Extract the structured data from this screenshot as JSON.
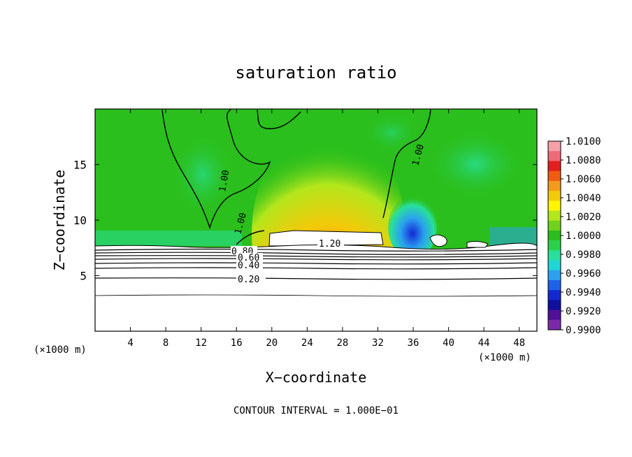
{
  "chart_data": {
    "type": "heatmap",
    "title": "saturation ratio",
    "xlabel": "X−coordinate",
    "ylabel": "Z−coordinate",
    "x_unit_left": "(×1000 m)",
    "x_unit_right": "(×1000 m)",
    "xlim": [
      0,
      50
    ],
    "ylim": [
      0,
      20
    ],
    "x_ticks": [
      4,
      8,
      12,
      16,
      20,
      24,
      28,
      32,
      36,
      40,
      44,
      48
    ],
    "y_ticks": [
      5,
      10,
      15
    ],
    "x_tick_labels": [
      "4",
      "8",
      "12",
      "16",
      "20",
      "24",
      "28",
      "32",
      "36",
      "40",
      "44",
      "48"
    ],
    "y_tick_labels": [
      "5",
      "10",
      "15"
    ],
    "footer": "CONTOUR INTERVAL = 1.000E−01",
    "colorbar": {
      "range": [
        0.99,
        1.01
      ],
      "labels": [
        "1.0100",
        "1.0080",
        "1.0060",
        "1.0040",
        "1.0020",
        "1.0000",
        "0.9980",
        "0.9960",
        "0.9940",
        "0.9920",
        "0.9900"
      ],
      "colors": [
        "#f6a0a8",
        "#ef6a78",
        "#e41e1e",
        "#f25c12",
        "#f59a1c",
        "#f4c90a",
        "#fff600",
        "#b4e61c",
        "#70d21c",
        "#2abf1c",
        "#2ad24c",
        "#28e09c",
        "#1ed6d6",
        "#2ba0f0",
        "#1e62e8",
        "#1428d2",
        "#1010a0",
        "#50109a",
        "#7a2aa8"
      ]
    },
    "contours": [
      {
        "level": 0.2,
        "label": "0.20",
        "z_km": 4.8
      },
      {
        "level": 0.4,
        "label": "0.40",
        "z_km": 5.8
      },
      {
        "level": 0.6,
        "label": "0.60",
        "z_km": 6.6
      },
      {
        "level": 0.8,
        "label": "0.80",
        "z_km": 7.1
      },
      {
        "level": 1.0,
        "label": "1.00",
        "z_km": 10.2
      },
      {
        "level": 1.2,
        "label": "1.20",
        "z_km": 7.9
      }
    ]
  }
}
